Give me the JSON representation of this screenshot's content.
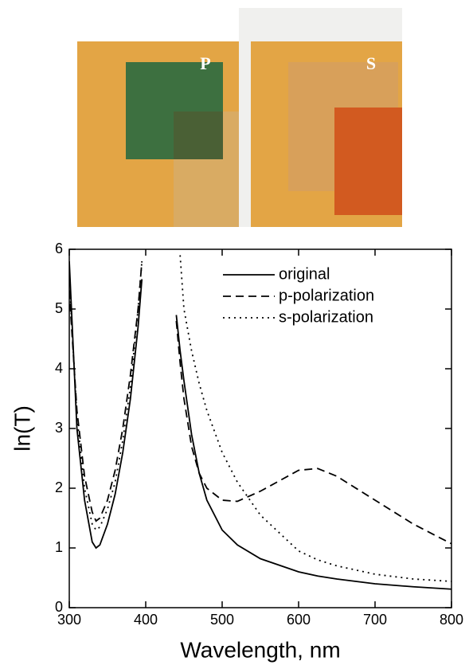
{
  "photos": {
    "labels": [
      "P",
      "S"
    ]
  },
  "chart_data": {
    "type": "line",
    "xlabel": "Wavelength, nm",
    "ylabel": "ln(T)",
    "x": [
      300,
      310,
      320,
      330,
      335,
      340,
      350,
      360,
      370,
      380,
      390,
      395,
      400,
      420,
      440,
      445,
      450,
      460,
      470,
      480,
      500,
      520,
      550,
      600,
      625,
      650,
      700,
      750,
      800
    ],
    "series": [
      {
        "name": "original",
        "color": "#000000",
        "dash": "solid",
        "values": [
          5.8,
          3.0,
          1.8,
          1.1,
          1.0,
          1.05,
          1.4,
          1.9,
          2.6,
          3.5,
          4.7,
          5.5,
          null,
          null,
          4.9,
          4.3,
          3.8,
          2.9,
          2.25,
          1.8,
          1.3,
          1.05,
          0.82,
          0.6,
          0.53,
          0.48,
          0.4,
          0.35,
          0.31
        ]
      },
      {
        "name": "p-polarization",
        "color": "#000000",
        "dash": "dashed",
        "values": [
          5.3,
          3.3,
          2.2,
          1.6,
          1.45,
          1.5,
          1.8,
          2.3,
          3.0,
          3.9,
          5.0,
          5.8,
          null,
          null,
          4.8,
          4.1,
          3.5,
          2.7,
          2.25,
          2.0,
          1.8,
          1.78,
          1.95,
          2.3,
          2.33,
          2.2,
          1.8,
          1.4,
          1.07
        ]
      },
      {
        "name": "s-polarization",
        "color": "#000000",
        "dash": "dotted",
        "values": [
          5.5,
          3.2,
          2.0,
          1.4,
          1.3,
          1.35,
          1.65,
          2.1,
          2.8,
          3.7,
          5.0,
          5.8,
          null,
          null,
          null,
          5.9,
          5.0,
          4.3,
          3.75,
          3.3,
          2.6,
          2.1,
          1.55,
          0.95,
          0.8,
          0.7,
          0.56,
          0.48,
          0.44
        ]
      }
    ],
    "xlim": [
      300,
      800
    ],
    "xticks": [
      300,
      400,
      500,
      600,
      700,
      800
    ],
    "ylim": [
      0,
      6
    ],
    "yticks": [
      0,
      1,
      2,
      3,
      4,
      5,
      6
    ],
    "legend": "upper right"
  }
}
